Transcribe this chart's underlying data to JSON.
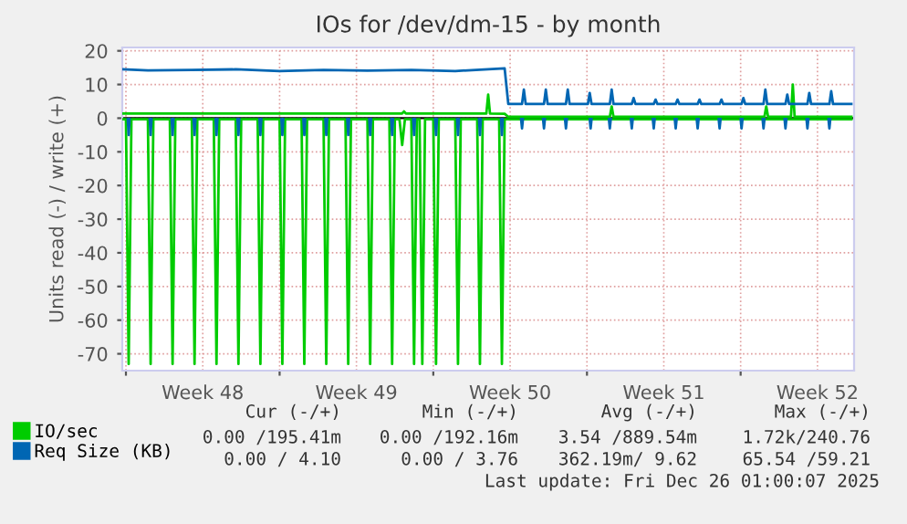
{
  "chart_data": {
    "type": "line",
    "title": "IOs for /dev/dm-15 - by month",
    "ylabel": "Units read (-) / write (+)",
    "xlim": [
      "2025-11-22T20:00",
      "2025-12-26T04:00"
    ],
    "xticks": [
      {
        "value": "2025-11-23",
        "label": null
      },
      {
        "value": "2025-11-26T12:00",
        "label": "Week 48"
      },
      {
        "value": "2025-11-30",
        "label": null
      },
      {
        "value": "2025-12-03T12:00",
        "label": "Week 49"
      },
      {
        "value": "2025-12-07",
        "label": null
      },
      {
        "value": "2025-12-10T12:00",
        "label": "Week 50"
      },
      {
        "value": "2025-12-14",
        "label": null
      },
      {
        "value": "2025-12-17T12:00",
        "label": "Week 51"
      },
      {
        "value": "2025-12-21",
        "label": null
      },
      {
        "value": "2025-12-24T12:00",
        "label": "Week 52"
      }
    ],
    "ylim": [
      -75,
      21
    ],
    "yticks": [
      -70,
      -60,
      -50,
      -40,
      -30,
      -20,
      -10,
      0,
      10,
      20
    ],
    "grid": true,
    "legend": "bottom",
    "marker": "none",
    "line_style": "solid",
    "ref_lines": [
      {
        "axis": "y",
        "value": 0,
        "color": "#000000"
      }
    ],
    "series": [
      {
        "color": "#00cc00",
        "x": [
          "2025-11-22T20:00",
          "2025-11-23T00:00",
          "2025-11-23T03:00",
          "2025-11-23T06:00",
          "2025-11-24T00:00",
          "2025-11-24T03:00",
          "2025-11-24T06:00",
          "2025-11-25T00:00",
          "2025-11-25T03:00",
          "2025-11-25T06:00",
          "2025-11-26T00:00",
          "2025-11-26T03:00",
          "2025-11-26T06:00",
          "2025-11-27T00:00",
          "2025-11-27T03:00",
          "2025-11-27T06:00",
          "2025-11-28T00:00",
          "2025-11-28T03:00",
          "2025-11-28T06:00",
          "2025-11-29T00:00",
          "2025-11-29T03:00",
          "2025-11-29T06:00",
          "2025-11-30T00:00",
          "2025-11-30T03:00",
          "2025-11-30T06:00",
          "2025-12-01T00:00",
          "2025-12-01T03:00",
          "2025-12-01T06:00",
          "2025-12-02T00:00",
          "2025-12-02T03:00",
          "2025-12-02T06:00",
          "2025-12-03T00:00",
          "2025-12-03T03:00",
          "2025-12-03T06:00",
          "2025-12-04T00:00",
          "2025-12-04T03:00",
          "2025-12-04T06:00",
          "2025-12-05T00:00",
          "2025-12-05T03:00",
          "2025-12-05T06:00",
          "2025-12-05T11:00",
          "2025-12-05T14:00",
          "2025-12-05T17:00",
          "2025-12-06T00:00",
          "2025-12-06T03:00",
          "2025-12-06T06:00",
          "2025-12-06T09:00",
          "2025-12-06T12:00",
          "2025-12-06T15:00",
          "2025-12-07T00:00",
          "2025-12-07T03:00",
          "2025-12-07T06:00",
          "2025-12-08T00:00",
          "2025-12-08T03:00",
          "2025-12-08T06:00",
          "2025-12-09T00:00",
          "2025-12-09T03:00",
          "2025-12-09T06:00",
          "2025-12-10T00:00",
          "2025-12-10T03:00",
          "2025-12-10T06:00",
          "2025-12-26T01:00"
        ],
        "values": [
          -0.3,
          -0.3,
          -73,
          -0.3,
          -0.3,
          -73,
          -0.3,
          -0.3,
          -73,
          -0.3,
          -0.3,
          -73,
          -0.3,
          -0.3,
          -73,
          -0.3,
          -0.3,
          -73,
          -0.3,
          -0.3,
          -73,
          -0.3,
          -0.3,
          -73,
          -0.3,
          -0.3,
          -73,
          -0.3,
          -0.3,
          -73,
          -0.3,
          -0.3,
          -73,
          -0.3,
          -0.3,
          -73,
          -0.3,
          -0.3,
          -73,
          -0.3,
          -0.3,
          -8,
          -0.3,
          -0.3,
          -73,
          -0.3,
          -0.3,
          -73,
          -0.3,
          -0.3,
          -73,
          -0.3,
          -0.3,
          -73,
          -0.3,
          -0.3,
          -73,
          -0.3,
          -0.3,
          -73,
          -0.3,
          -0.3
        ]
      },
      {
        "name": "IO/sec",
        "color": "#00cc00",
        "x": [
          "2025-11-22T20:00",
          "2025-12-05T14:00",
          "2025-12-05T16:00",
          "2025-12-05T18:00",
          "2025-12-09T10:00",
          "2025-12-09T12:00",
          "2025-12-09T14:00",
          "2025-12-10T06:00",
          "2025-12-10T10:00",
          "2025-12-15T01:00",
          "2025-12-15T03:00",
          "2025-12-15T05:00",
          "2025-12-22T02:00",
          "2025-12-22T04:00",
          "2025-12-22T06:00",
          "2025-12-23T07:00",
          "2025-12-23T09:00",
          "2025-12-23T11:00",
          "2025-12-26T01:00"
        ],
        "values": [
          1.4,
          1.4,
          2,
          1.4,
          1.4,
          7,
          1.4,
          1.3,
          0.4,
          0.4,
          3.5,
          0.4,
          0.4,
          3.5,
          0.4,
          0.4,
          10,
          0.4,
          0.4
        ]
      },
      {
        "color": "#0066b3",
        "x": [
          "2025-11-23T02:00",
          "2025-11-23T03:00",
          "2025-11-23T04:00",
          "2025-11-23T12:00",
          "2025-11-24T02:00",
          "2025-11-24T03:00",
          "2025-11-24T04:00",
          "2025-11-24T12:00",
          "2025-11-25T02:00",
          "2025-11-25T03:00",
          "2025-11-25T04:00",
          "2025-11-25T12:00",
          "2025-11-26T02:00",
          "2025-11-26T03:00",
          "2025-11-26T04:00",
          "2025-11-26T12:00",
          "2025-11-27T02:00",
          "2025-11-27T03:00",
          "2025-11-27T04:00",
          "2025-11-27T12:00",
          "2025-11-28T02:00",
          "2025-11-28T03:00",
          "2025-11-28T04:00",
          "2025-11-28T12:00",
          "2025-11-29T02:00",
          "2025-11-29T03:00",
          "2025-11-29T04:00",
          "2025-11-29T12:00",
          "2025-11-30T02:00",
          "2025-11-30T03:00",
          "2025-11-30T04:00",
          "2025-11-30T12:00",
          "2025-12-01T02:00",
          "2025-12-01T03:00",
          "2025-12-01T04:00",
          "2025-12-01T12:00",
          "2025-12-02T02:00",
          "2025-12-02T03:00",
          "2025-12-02T04:00",
          "2025-12-02T12:00",
          "2025-12-03T02:00",
          "2025-12-03T03:00",
          "2025-12-03T04:00",
          "2025-12-03T12:00",
          "2025-12-04T02:00",
          "2025-12-04T03:00",
          "2025-12-04T04:00",
          "2025-12-04T12:00",
          "2025-12-05T02:00",
          "2025-12-05T03:00",
          "2025-12-05T04:00",
          "2025-12-05T12:00",
          "2025-12-06T02:00",
          "2025-12-06T03:00",
          "2025-12-06T04:00",
          "2025-12-06T12:00",
          "2025-12-07T02:00",
          "2025-12-07T03:00",
          "2025-12-07T04:00",
          "2025-12-07T12:00",
          "2025-12-08T02:00",
          "2025-12-08T03:00",
          "2025-12-08T04:00",
          "2025-12-08T12:00",
          "2025-12-09T02:00",
          "2025-12-09T03:00",
          "2025-12-09T04:00",
          "2025-12-09T12:00",
          "2025-12-10T02:00",
          "2025-12-10T03:00",
          "2025-12-10T04:00",
          "2025-12-10T12:00",
          "2025-12-11T00:00",
          "2025-12-11T01:00",
          "2025-12-11T02:00",
          "2025-12-11T12:00",
          "2025-12-12T00:00",
          "2025-12-12T01:00",
          "2025-12-12T02:00",
          "2025-12-12T12:00",
          "2025-12-13T00:00",
          "2025-12-13T01:00",
          "2025-12-13T02:00",
          "2025-12-13T12:00",
          "2025-12-14T03:00",
          "2025-12-14T04:00",
          "2025-12-14T05:00",
          "2025-12-14T12:00",
          "2025-12-15T00:00",
          "2025-12-15T01:00",
          "2025-12-15T02:00",
          "2025-12-15T12:00",
          "2025-12-16T00:00",
          "2025-12-16T01:00",
          "2025-12-16T02:00",
          "2025-12-16T12:00",
          "2025-12-17T00:00",
          "2025-12-17T01:00",
          "2025-12-17T02:00",
          "2025-12-17T12:00",
          "2025-12-18T00:00",
          "2025-12-18T01:00",
          "2025-12-18T02:00",
          "2025-12-18T12:00",
          "2025-12-19T00:00",
          "2025-12-19T01:00",
          "2025-12-19T02:00",
          "2025-12-19T12:00",
          "2025-12-20T00:00",
          "2025-12-20T01:00",
          "2025-12-20T02:00",
          "2025-12-20T12:00",
          "2025-12-21T00:00",
          "2025-12-21T01:00",
          "2025-12-21T02:00",
          "2025-12-21T12:00",
          "2025-12-22T00:00",
          "2025-12-22T01:00",
          "2025-12-22T02:00",
          "2025-12-22T12:00",
          "2025-12-23T00:00",
          "2025-12-23T01:00",
          "2025-12-23T02:00",
          "2025-12-23T12:00",
          "2025-12-24T00:00",
          "2025-12-24T01:00",
          "2025-12-24T02:00",
          "2025-12-24T12:00",
          "2025-12-25T00:00",
          "2025-12-25T01:00",
          "2025-12-25T02:00"
        ],
        "values": [
          -0.3,
          -5,
          -0.3,
          null,
          -0.3,
          -5,
          -0.3,
          null,
          -0.3,
          -5,
          -0.3,
          null,
          -0.3,
          -5,
          -0.3,
          null,
          -0.3,
          -5,
          -0.3,
          null,
          -0.3,
          -5,
          -0.3,
          null,
          -0.3,
          -5,
          -0.3,
          null,
          -0.3,
          -5,
          -0.3,
          null,
          -0.3,
          -5,
          -0.3,
          null,
          -0.3,
          -5,
          -0.3,
          null,
          -0.3,
          -5,
          -0.3,
          null,
          -0.3,
          -5,
          -0.3,
          null,
          -0.3,
          -5,
          -0.3,
          null,
          -0.3,
          -5,
          -0.3,
          null,
          -0.3,
          -5,
          -0.3,
          null,
          -0.3,
          -5,
          -0.3,
          null,
          -0.3,
          -5,
          -0.3,
          null,
          -0.3,
          -5,
          -0.3,
          null,
          -0.3,
          -3,
          -0.3,
          null,
          -0.3,
          -3,
          -0.3,
          null,
          -0.3,
          -3,
          -0.3,
          null,
          -0.3,
          -3,
          -0.3,
          null,
          -0.3,
          -3,
          -0.3,
          null,
          -0.3,
          -3,
          -0.3,
          null,
          -0.3,
          -3,
          -0.3,
          null,
          -0.3,
          -3,
          -0.3,
          null,
          -0.3,
          -3,
          -0.3,
          null,
          -0.3,
          -3,
          -0.3,
          null,
          -0.3,
          -3,
          -0.3,
          null,
          -0.3,
          -3,
          -0.3,
          null,
          -0.3,
          -3,
          -0.3,
          null,
          -0.3,
          -3,
          -0.3,
          null,
          -0.3,
          -3,
          -0.3
        ]
      },
      {
        "name": "Req Size (KB)",
        "color": "#0066b3",
        "x": [
          "2025-11-22T20:00",
          "2025-11-24T00:00",
          "2025-11-26T00:00",
          "2025-11-28T00:00",
          "2025-11-30T00:00",
          "2025-12-02T00:00",
          "2025-12-04T00:00",
          "2025-12-06T00:00",
          "2025-12-08T00:00",
          "2025-12-10T06:00",
          "2025-12-10T10:00",
          "2025-12-11T01:00",
          "2025-12-11T03:00",
          "2025-12-11T05:00",
          "2025-12-12T01:00",
          "2025-12-12T03:00",
          "2025-12-12T05:00",
          "2025-12-13T01:00",
          "2025-12-13T03:00",
          "2025-12-13T05:00",
          "2025-12-14T01:00",
          "2025-12-14T03:00",
          "2025-12-14T05:00",
          "2025-12-15T01:00",
          "2025-12-15T03:00",
          "2025-12-15T05:00",
          "2025-12-16T01:00",
          "2025-12-16T03:00",
          "2025-12-16T05:00",
          "2025-12-17T01:00",
          "2025-12-17T03:00",
          "2025-12-17T05:00",
          "2025-12-18T01:00",
          "2025-12-18T03:00",
          "2025-12-18T05:00",
          "2025-12-19T01:00",
          "2025-12-19T03:00",
          "2025-12-19T05:00",
          "2025-12-20T01:00",
          "2025-12-20T03:00",
          "2025-12-20T05:00",
          "2025-12-21T01:00",
          "2025-12-21T03:00",
          "2025-12-21T05:00",
          "2025-12-22T01:00",
          "2025-12-22T03:00",
          "2025-12-22T05:00",
          "2025-12-23T01:00",
          "2025-12-23T03:00",
          "2025-12-23T05:00",
          "2025-12-24T01:00",
          "2025-12-24T03:00",
          "2025-12-24T05:00",
          "2025-12-25T01:00",
          "2025-12-25T03:00",
          "2025-12-25T05:00",
          "2025-12-26T01:00"
        ],
        "values": [
          14.5,
          14.2,
          14.3,
          14.5,
          14.0,
          14.3,
          14.1,
          14.3,
          14.0,
          14.8,
          4.2,
          4.2,
          8.5,
          4.2,
          4.2,
          8.5,
          4.2,
          4.2,
          8.5,
          4.2,
          4.2,
          7.5,
          4.2,
          4.2,
          8.5,
          4.2,
          4.2,
          6,
          4.2,
          4.2,
          5.5,
          4.2,
          4.2,
          5.5,
          4.2,
          4.2,
          5.5,
          4.2,
          4.2,
          5.5,
          4.2,
          4.2,
          6,
          4.2,
          4.2,
          8.5,
          4.2,
          4.2,
          7,
          4.2,
          4.2,
          7.5,
          4.2,
          4.2,
          8,
          4.2,
          4.2
        ]
      }
    ],
    "annotations": [
      "Cur (-/+)",
      "Min (-/+)",
      "Avg (-/+)",
      "Max (-/+)",
      "0.00 /195.41m",
      "0.00 /192.16m",
      "3.54 /889.54m",
      "1.72k/240.76",
      "0.00 / 4.10",
      "0.00 / 3.76",
      "362.19m/ 9.62",
      "65.54 /59.21",
      "Last update: Fri Dec 26 01:00:07 2025"
    ]
  }
}
